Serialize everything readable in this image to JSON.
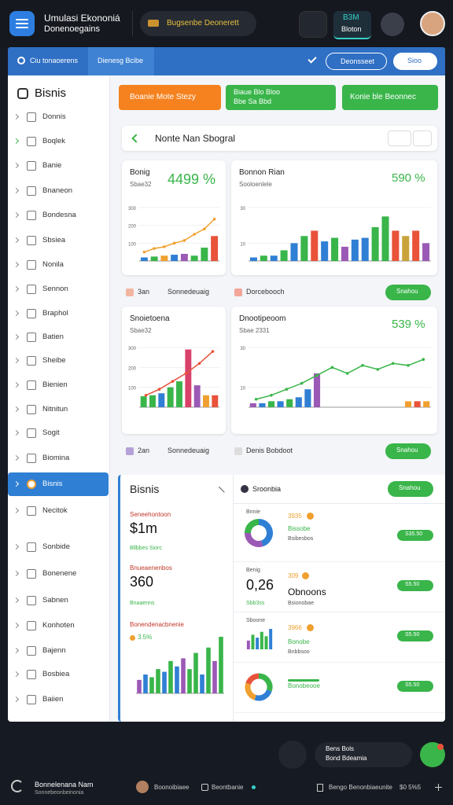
{
  "topbar": {
    "app_title": "Umulasi Ekononiá",
    "app_subtitle": "Donenoegains",
    "pill": "Bugsenbe Deonerett",
    "active_tab_title": "B3M",
    "active_tab_label": "Bloton"
  },
  "toolbar": {
    "left": "Ciu tonaoerens",
    "tab": "Dienesg Bcibe",
    "button": "Deonsseet",
    "button2": "Sioo"
  },
  "sidebar": {
    "title": "Bisnis",
    "active": 15,
    "items": [
      "Donnis",
      "Boqlek",
      "Banie",
      "Bnaneon",
      "Bondesna",
      "Sbsiea",
      "Nonila",
      "Sennon",
      "Braphol",
      "Batien",
      "Sheibe",
      "Bienien",
      "Nitnitun",
      "Sogit",
      "Biomina",
      "Bisnis",
      "Necitok",
      "Sonbide",
      "Bonenene",
      "Sabnen",
      "Konhoten",
      "Bajenn",
      "Bosbiea",
      "Baiien"
    ]
  },
  "actions": {
    "primary": "Boanie Mote Stezy",
    "secondary": "Biaue Blo Bloo",
    "secondary_sub": "Bbe Sa Bbd",
    "tertiary": "Konie ble Beonnec"
  },
  "search": {
    "title": "Nonte Nan Sbogral"
  },
  "cards": [
    {
      "title": "Bonig",
      "subtitle": "Sbae32",
      "metric": "4499 %",
      "ylim": [
        0,
        300
      ],
      "yticks": [
        100,
        200,
        300
      ],
      "values": [
        20,
        25,
        30,
        35,
        40,
        30,
        75,
        140
      ],
      "colors": [
        "#2f7fd4",
        "#39b54a",
        "#f0a030",
        "#2f7fd4",
        "#9b59b6",
        "#39b54a",
        "#39b54a",
        "#e8533a"
      ],
      "line": [
        50,
        70,
        80,
        100,
        115,
        150,
        180,
        235
      ],
      "line_color": "#f0a030"
    },
    {
      "title": "Bonnon Rian",
      "subtitle": "Sooloenlele",
      "metric": "590 %",
      "ylim": [
        0,
        30
      ],
      "yticks": [
        10,
        30
      ],
      "values": [
        2,
        3,
        3,
        6,
        10,
        14,
        17,
        11,
        13,
        8,
        12,
        13,
        19,
        25,
        17,
        14,
        17,
        10
      ],
      "colors": [
        "#2f7fd4",
        "#39b54a",
        "#2f7fd4",
        "#39b54a",
        "#2f7fd4",
        "#39b54a",
        "#e8533a",
        "#2f7fd4",
        "#39b54a",
        "#9b59b6",
        "#2f7fd4",
        "#2f7fd4",
        "#39b54a",
        "#39b54a",
        "#e8533a",
        "#c9a23a",
        "#e8533a",
        "#9b59b6"
      ]
    },
    {
      "title": "Snoietoena",
      "subtitle": "Sbae32",
      "metric": "",
      "ylim": [
        0,
        300
      ],
      "yticks": [
        100,
        200,
        300
      ],
      "values": [
        55,
        60,
        70,
        100,
        130,
        290,
        110,
        60,
        60
      ],
      "colors": [
        "#39b54a",
        "#39b54a",
        "#2f7fd4",
        "#39b54a",
        "#39b54a",
        "#d9416a",
        "#9b59b6",
        "#f0a030",
        "#e8533a"
      ],
      "line": [
        60,
        90,
        130,
        170,
        220,
        280
      ],
      "line_color": "#e8533a"
    },
    {
      "title": "Dnootipeoom",
      "subtitle": "Sbae 2331",
      "metric": "539 %",
      "ylim": [
        0,
        30
      ],
      "yticks": [
        10,
        30
      ],
      "values": [
        2,
        2,
        3,
        3,
        4,
        5,
        9,
        17,
        0,
        0,
        0,
        0,
        0,
        0,
        0,
        0,
        0,
        3,
        3,
        3
      ],
      "colors": [
        "#9b59b6",
        "#2f7fd4",
        "#39b54a",
        "#2f7fd4",
        "#39b54a",
        "#2f7fd4",
        "#2f7fd4",
        "#9b59b6",
        "#2f7fd4",
        "#2f7fd4",
        "#2f7fd4",
        "#2f7fd4",
        "#2f7fd4",
        "#2f7fd4",
        "#2f7fd4",
        "#2f7fd4",
        "#2f7fd4",
        "#f0a030",
        "#e8533a",
        "#f0a030"
      ],
      "line": [
        4,
        6,
        9,
        12,
        16,
        20,
        17,
        21,
        19,
        22,
        21,
        24
      ],
      "line_color": "#39b54a"
    }
  ],
  "rows": [
    {
      "left": "3an",
      "mid": "Sonnedeuaig",
      "right": "Dorcebooch",
      "button": "Snahou"
    },
    {
      "left": "2an",
      "mid": "Sonnedeuaig",
      "right": "Denis Bobdoot",
      "button": "Snahou"
    }
  ],
  "bottom": {
    "title": "Bisnis",
    "mid_header": "Sroonbia",
    "button": "Snahou",
    "stats": [
      {
        "label": "Seneehontoon",
        "value": "$1m",
        "sub": "Bllbbes Siorc"
      },
      {
        "label": "Bnueaenenbos",
        "value": "360",
        "sub": "Bnaaenns"
      }
    ],
    "chart_title": "Bonendenacbnenie",
    "chart_metric": "3.5%",
    "chart": {
      "values": [
        10,
        14,
        12,
        18,
        16,
        24,
        20,
        26,
        18,
        30,
        14,
        34,
        24,
        42
      ],
      "colors": [
        "#9b59b6",
        "#2f7fd4",
        "#39b54a",
        "#39b54a",
        "#2f7fd4",
        "#39b54a",
        "#2f7fd4",
        "#9b59b6",
        "#39b54a",
        "#39b54a",
        "#2f7fd4",
        "#39b54a",
        "#9b59b6",
        "#39b54a"
      ]
    },
    "mid": [
      {
        "label": "Bnnie",
        "donut": [
          45,
          30,
          25
        ],
        "colors": [
          "#2f7fd4",
          "#9b59b6",
          "#39b54a"
        ]
      },
      {
        "label": "Benig",
        "value": "0,26",
        "sub": "Sbb3ss"
      },
      {
        "label": "Sboone",
        "bars": [
          6,
          10,
          8,
          12,
          9,
          14
        ],
        "colors": [
          "#9b59b6",
          "#39b54a",
          "#2f7fd4",
          "#39b54a",
          "#39b54a",
          "#2f7fd4"
        ]
      },
      {
        "donut": [
          30,
          25,
          25,
          20
        ],
        "colors": [
          "#39b54a",
          "#2f7fd4",
          "#f0a030",
          "#e8533a"
        ]
      }
    ],
    "right": [
      {
        "title": "3935",
        "text": "Bissobe",
        "sub": "Bsibesbos",
        "badge": "S35.50"
      },
      {
        "title": "309",
        "text": "Obnoons",
        "sub": "Bsionobae",
        "badge": "S5.50"
      },
      {
        "title": "3966",
        "text": "Bonobe",
        "sub": "Bnbbsoo",
        "badge": "S5.50"
      },
      {
        "title": "",
        "text": "Bonobeooe",
        "sub": "",
        "badge": "S5.50"
      }
    ]
  },
  "dock": {
    "toast_title": "Bens Bols",
    "toast_sub": "Bond Bdeamia"
  },
  "footer": {
    "title": "Bonnelenana Nam",
    "sub": "Sonnebeonbeinonia",
    "user": "Boonoibiaee",
    "item": "Beontbanie",
    "right": "Bengo Benonbiaeunite",
    "value": "$0 5%5"
  }
}
